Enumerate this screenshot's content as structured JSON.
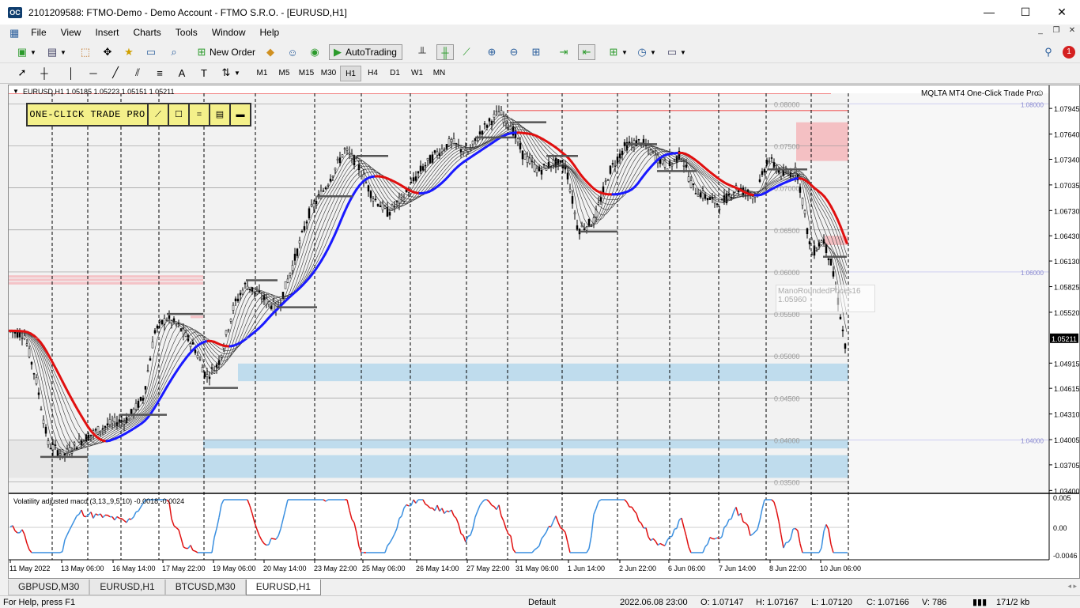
{
  "window": {
    "title": "2101209588: FTMO-Demo - Demo Account - FTMO S.R.O. - [EURUSD,H1]",
    "app_icon_text": "OC",
    "minimize": "—",
    "maximize": "☐",
    "close": "✕"
  },
  "menu": [
    "File",
    "View",
    "Insert",
    "Charts",
    "Tools",
    "Window",
    "Help"
  ],
  "toolbar": {
    "new_order": "New Order",
    "autotrading": "AutoTrading",
    "notification_count": "1"
  },
  "timeframes": [
    "M1",
    "M5",
    "M15",
    "M30",
    "H1",
    "H4",
    "D1",
    "W1",
    "MN"
  ],
  "active_timeframe": "H1",
  "chart": {
    "header": "EURUSD,H1  1.05185 1.05223 1.05151 1.05211",
    "ea_label": "MQLTA MT4 One-Click Trade Pro",
    "one_click": {
      "label": "ONE-CLICK TRADE PRO",
      "buttons": [
        "⟋",
        "☐",
        "=",
        "▤",
        "▬"
      ]
    },
    "price_labels": [
      "1.07945",
      "1.07640",
      "1.07340",
      "1.07035",
      "1.06730",
      "1.06430",
      "1.06130",
      "1.05825",
      "1.05520",
      "1.05211",
      "1.04915",
      "1.04615",
      "1.04310",
      "1.04005",
      "1.03705",
      "1.03400"
    ],
    "current_price": "1.05211",
    "round_levels": [
      "0.08000",
      "0.07500",
      "0.07000",
      "0.06500",
      "0.06000",
      "0.05500",
      "0.05000",
      "0.04500",
      "0.04000",
      "0.03500"
    ],
    "right_round_labels": [
      "1.08000",
      "1.06000",
      "1.04000"
    ],
    "mano_tooltip": [
      "ManoRoundedPrices16",
      "1.05960"
    ],
    "indicator": {
      "header": "Volatility adjusted macd (3,13,,9,5,10) -0.0018 -0.0024",
      "scale": [
        "0.005",
        "0.00",
        "-0.0046"
      ]
    },
    "dates": [
      "11 May 2022",
      "13 May 06:00",
      "16 May 14:00",
      "17 May 22:00",
      "19 May 06:00",
      "20 May 14:00",
      "23 May 22:00",
      "25 May 06:00",
      "26 May 14:00",
      "27 May 22:00",
      "31 May 06:00",
      "1 Jun 14:00",
      "2 Jun 22:00",
      "6 Jun 06:00",
      "7 Jun 14:00",
      "8 Jun 22:00",
      "10 Jun 06:00"
    ],
    "colors": {
      "bull_ma": "#1a1aff",
      "bear_ma": "#e01010",
      "zone_red": "#f4b7bb",
      "zone_blue": "#b9d9ec",
      "ribbon": "#333333"
    }
  },
  "tabs": [
    "GBPUSD,M30",
    "EURUSD,H1",
    "BTCUSD,M30",
    "EURUSD,H1"
  ],
  "active_tab": 3,
  "status": {
    "help": "For Help, press F1",
    "profile": "Default",
    "time": "2022.06.08 23:00",
    "open": "O: 1.07147",
    "high": "H: 1.07167",
    "low": "L: 1.07120",
    "close": "C: 1.07166",
    "volume": "V: 786",
    "traffic": "171/2 kb"
  }
}
